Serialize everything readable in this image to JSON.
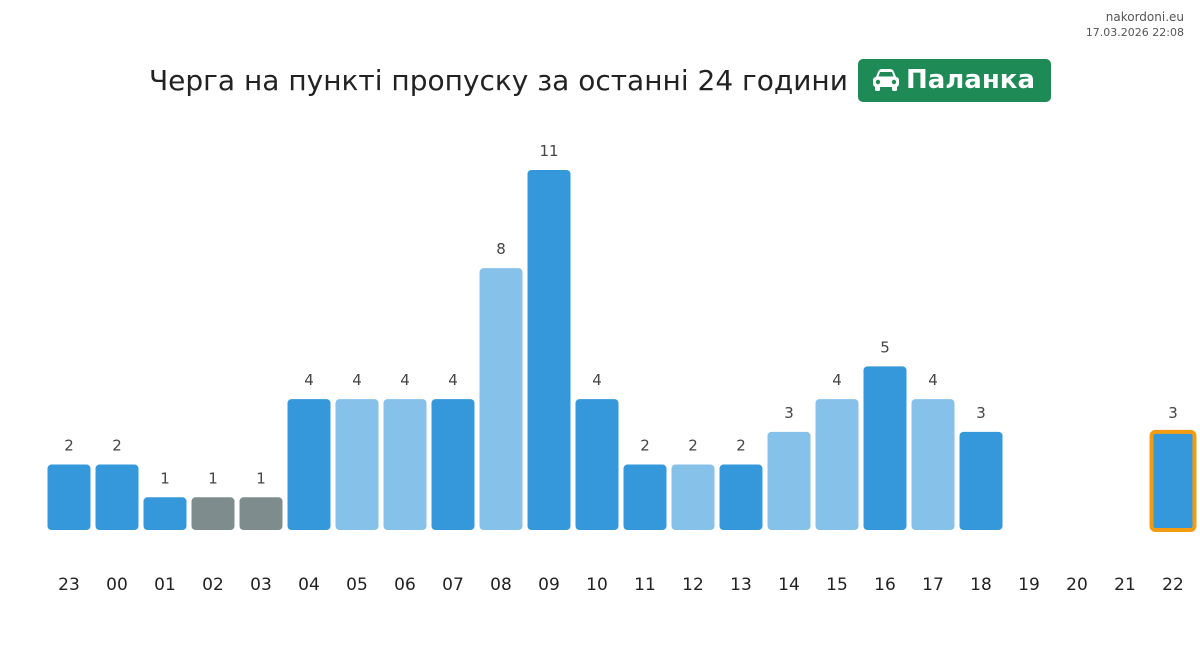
{
  "site": {
    "name": "nakordoni.eu",
    "timestamp": "17.03.2026 22:08"
  },
  "header": {
    "title": "Черга на пункті пропуску за останні 24 години",
    "checkpoint": "Паланка",
    "checkpoint_icon": "car-icon"
  },
  "colors": {
    "dark_blue": "#3498db",
    "light_blue": "#85c1e9",
    "gray": "#7f8c8d",
    "highlight_border": "#f39c12",
    "badge": "#1e8a56"
  },
  "chart_data": {
    "type": "bar",
    "categories": [
      "23",
      "00",
      "01",
      "02",
      "03",
      "04",
      "05",
      "06",
      "07",
      "08",
      "09",
      "10",
      "11",
      "12",
      "13",
      "14",
      "15",
      "16",
      "17",
      "18",
      "19",
      "20",
      "21",
      "22"
    ],
    "values": [
      2,
      2,
      1,
      1,
      1,
      4,
      4,
      4,
      4,
      8,
      11,
      4,
      2,
      2,
      2,
      3,
      4,
      5,
      4,
      3,
      null,
      null,
      null,
      3
    ],
    "bar_colors": [
      "dark_blue",
      "dark_blue",
      "dark_blue",
      "gray",
      "gray",
      "dark_blue",
      "light_blue",
      "light_blue",
      "dark_blue",
      "light_blue",
      "dark_blue",
      "dark_blue",
      "dark_blue",
      "light_blue",
      "dark_blue",
      "light_blue",
      "light_blue",
      "dark_blue",
      "light_blue",
      "dark_blue",
      null,
      null,
      null,
      "dark_blue"
    ],
    "highlighted_category": "22",
    "title": "Черга на пункті пропуску за останні 24 години",
    "xlabel": "",
    "ylabel": "",
    "grid": false
  }
}
